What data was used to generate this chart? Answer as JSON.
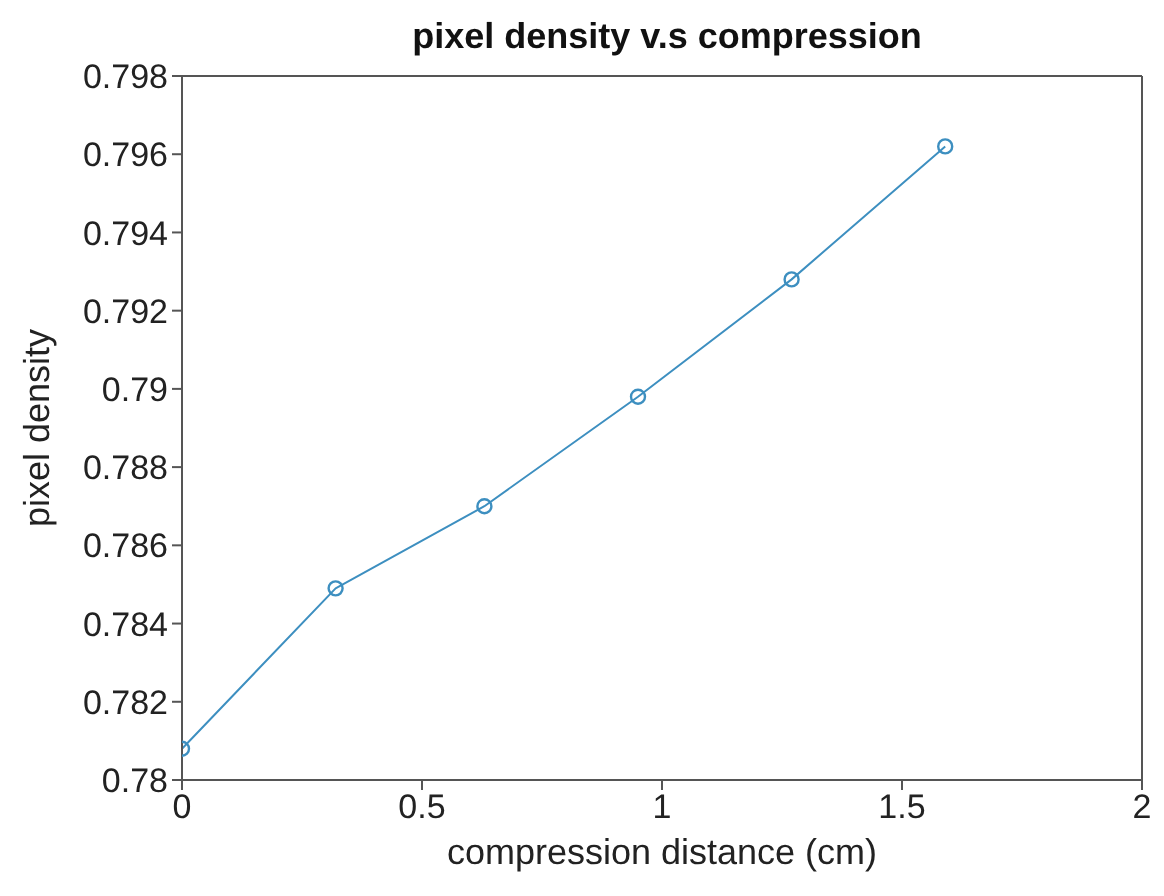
{
  "chart_data": {
    "type": "line",
    "title": "pixel density v.s compression",
    "xlabel": "compression distance (cm)",
    "ylabel": "pixel density",
    "x": [
      0,
      0.32,
      0.63,
      0.95,
      1.27,
      1.59
    ],
    "series": [
      {
        "color": "#3d8fc0",
        "values": [
          0.7808,
          0.7849,
          0.787,
          0.7898,
          0.7928,
          0.7962
        ]
      }
    ],
    "xlim": [
      0,
      2
    ],
    "xticks": [
      0,
      0.5,
      1,
      1.5,
      2
    ],
    "ylim": [
      0.78,
      0.798
    ],
    "yticks": [
      0.78,
      0.782,
      0.784,
      0.786,
      0.788,
      0.79,
      0.792,
      0.794,
      0.796,
      0.798
    ],
    "grid": false,
    "legend": false,
    "marker": "circle",
    "line_style": "solid"
  }
}
